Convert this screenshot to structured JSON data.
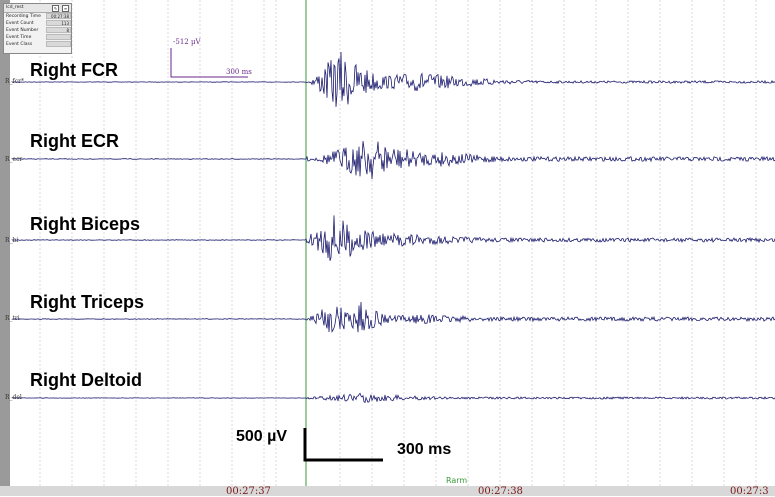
{
  "info_panel": {
    "title": "lcd_rest",
    "rows": [
      {
        "label": "Recording Time",
        "value": "00:27:38"
      },
      {
        "label": "Event Count",
        "value": "113"
      },
      {
        "label": "Event Number",
        "value": "8"
      },
      {
        "label": "Event Time",
        "value": ""
      },
      {
        "label": "Event Class",
        "value": ""
      }
    ]
  },
  "channels": [
    {
      "title": "Right FCR",
      "code": "R_fcr*"
    },
    {
      "title": "Right ECR",
      "code": "R_ecr"
    },
    {
      "title": "Right Biceps",
      "code": "R_bi"
    },
    {
      "title": "Right Triceps",
      "code": "R_tri"
    },
    {
      "title": "Right Deltoid",
      "code": "R_del"
    }
  ],
  "calibration_mini": {
    "amplitude": "-512 µV",
    "time": "300 ms"
  },
  "scale_bar": {
    "amplitude": "500 µV",
    "time": "300 ms"
  },
  "timeline": {
    "ticks": [
      "00:27:37",
      "00:27:38",
      "00:27:3"
    ],
    "marker": "Rarm"
  },
  "colors": {
    "trace": "#1a1a6e",
    "grid": "#c8c8c8",
    "marker": "#3a9a3a",
    "time_text": "#7a1a1a"
  }
}
